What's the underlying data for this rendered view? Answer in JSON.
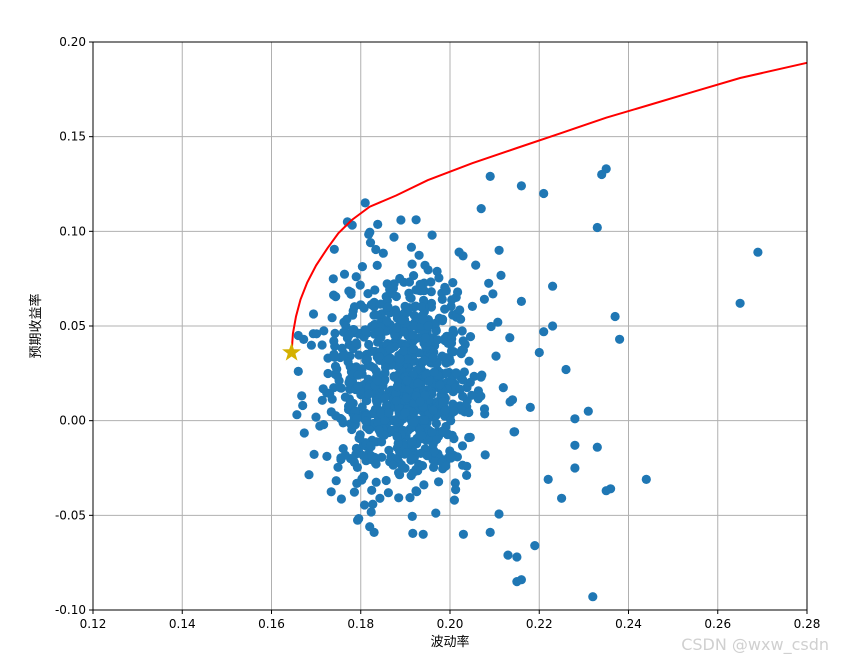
{
  "chart_data": {
    "type": "scatter",
    "xlabel": "波动率",
    "ylabel": "预期收益率",
    "xlim": [
      0.12,
      0.28
    ],
    "ylim": [
      -0.1,
      0.2
    ],
    "grid": true,
    "x_ticks": [
      "0.12",
      "0.14",
      "0.16",
      "0.18",
      "0.20",
      "0.22",
      "0.24",
      "0.26",
      "0.28"
    ],
    "y_ticks": [
      "-0.10",
      "-0.05",
      "0.00",
      "0.05",
      "0.10",
      "0.15",
      "0.20"
    ],
    "point_color": "#1f77b4",
    "frontier_color": "#ff0000",
    "marker_color": "#d4b000",
    "frontier": [
      [
        0.1645,
        0.036
      ],
      [
        0.1648,
        0.046
      ],
      [
        0.1655,
        0.055
      ],
      [
        0.1665,
        0.064
      ],
      [
        0.168,
        0.073
      ],
      [
        0.17,
        0.082
      ],
      [
        0.1725,
        0.091
      ],
      [
        0.175,
        0.099
      ],
      [
        0.178,
        0.106
      ],
      [
        0.182,
        0.113
      ],
      [
        0.188,
        0.119
      ],
      [
        0.195,
        0.127
      ],
      [
        0.205,
        0.136
      ],
      [
        0.215,
        0.144
      ],
      [
        0.225,
        0.152
      ],
      [
        0.235,
        0.16
      ],
      [
        0.245,
        0.167
      ],
      [
        0.255,
        0.174
      ],
      [
        0.265,
        0.181
      ],
      [
        0.28,
        0.189
      ]
    ],
    "min_vol_point": [
      0.1645,
      0.036
    ],
    "outliers": [
      [
        0.209,
        0.129
      ],
      [
        0.216,
        0.124
      ],
      [
        0.221,
        0.12
      ],
      [
        0.235,
        0.133
      ],
      [
        0.234,
        0.13
      ],
      [
        0.233,
        0.102
      ],
      [
        0.269,
        0.089
      ],
      [
        0.265,
        0.062
      ],
      [
        0.237,
        0.055
      ],
      [
        0.238,
        0.043
      ],
      [
        0.244,
        -0.031
      ],
      [
        0.236,
        -0.036
      ],
      [
        0.232,
        -0.093
      ],
      [
        0.215,
        -0.085
      ],
      [
        0.216,
        -0.084
      ],
      [
        0.219,
        -0.066
      ],
      [
        0.215,
        -0.072
      ],
      [
        0.213,
        -0.071
      ],
      [
        0.231,
        0.005
      ],
      [
        0.228,
        0.001
      ],
      [
        0.233,
        -0.014
      ],
      [
        0.228,
        -0.013
      ],
      [
        0.226,
        0.027
      ],
      [
        0.223,
        0.071
      ],
      [
        0.221,
        0.047
      ],
      [
        0.223,
        0.05
      ],
      [
        0.22,
        0.036
      ],
      [
        0.225,
        -0.041
      ],
      [
        0.222,
        -0.031
      ],
      [
        0.228,
        -0.025
      ],
      [
        0.181,
        0.115
      ],
      [
        0.177,
        0.105
      ],
      [
        0.207,
        0.112
      ],
      [
        0.196,
        0.098
      ],
      [
        0.189,
        0.106
      ],
      [
        0.203,
        -0.06
      ],
      [
        0.209,
        -0.059
      ],
      [
        0.183,
        -0.059
      ],
      [
        0.182,
        -0.056
      ],
      [
        0.194,
        -0.06
      ],
      [
        0.214,
        0.011
      ],
      [
        0.216,
        0.063
      ],
      [
        0.218,
        0.007
      ],
      [
        0.211,
        0.09
      ],
      [
        0.167,
        0.008
      ],
      [
        0.166,
        0.026
      ],
      [
        0.166,
        0.045
      ],
      [
        0.235,
        -0.037
      ]
    ]
  }
}
